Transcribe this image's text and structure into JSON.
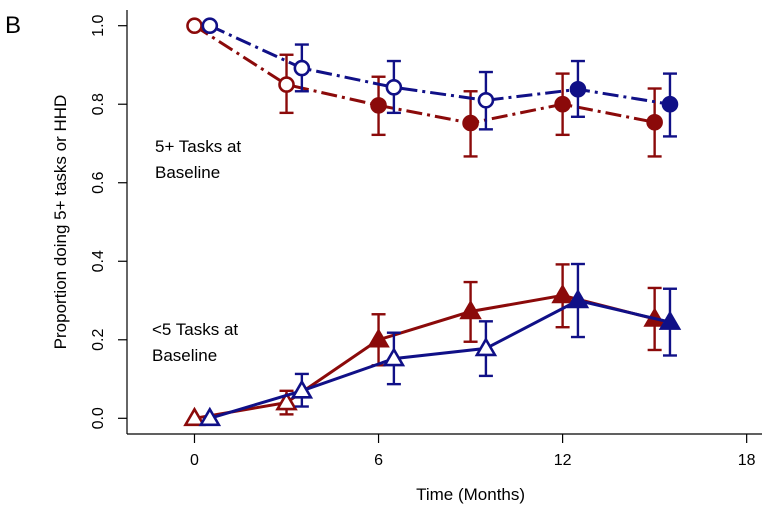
{
  "panel_label": "B",
  "chart_data": {
    "type": "line",
    "xlabel": "Time (Months)",
    "ylabel": "Proportion doing 5+ tasks or HHD",
    "xlim": [
      -2.2,
      18.5
    ],
    "ylim": [
      -0.04,
      1.04
    ],
    "xticks": [
      0,
      6,
      12,
      18
    ],
    "yticks": [
      0.0,
      0.2,
      0.4,
      0.6,
      0.8,
      1.0
    ],
    "ytick_labels": [
      "0.0",
      "0.2",
      "0.4",
      "0.6",
      "0.8",
      "1.0"
    ],
    "grid": false,
    "annotations": [
      {
        "lines": [
          "5+ Tasks at",
          "Baseline"
        ]
      },
      {
        "lines": [
          "<5 Tasks at",
          "Baseline"
        ]
      }
    ],
    "series": [
      {
        "group": "5+ Tasks at Baseline",
        "color": "#8B0A0A",
        "line_style": "dashdot",
        "marker": "circle",
        "x": [
          0,
          3,
          6,
          9,
          12,
          15
        ],
        "y": [
          1.0,
          0.85,
          0.797,
          0.752,
          0.8,
          0.754
        ],
        "err_low": [
          1.0,
          0.778,
          0.722,
          0.667,
          0.722,
          0.667
        ],
        "err_high": [
          1.0,
          0.926,
          0.87,
          0.833,
          0.878,
          0.84
        ],
        "filled": [
          false,
          false,
          true,
          true,
          true,
          true
        ]
      },
      {
        "group": "5+ Tasks at Baseline",
        "color": "#101087",
        "line_style": "dashdot",
        "marker": "circle",
        "x": [
          0.5,
          3.5,
          6.5,
          9.5,
          12.5,
          15.5
        ],
        "y": [
          1.0,
          0.892,
          0.843,
          0.81,
          0.838,
          0.8
        ],
        "err_low": [
          1.0,
          0.833,
          0.778,
          0.736,
          0.768,
          0.718
        ],
        "err_high": [
          1.0,
          0.952,
          0.91,
          0.882,
          0.91,
          0.878
        ],
        "filled": [
          false,
          false,
          false,
          false,
          true,
          true
        ]
      },
      {
        "group": "<5 Tasks at Baseline",
        "color": "#8B0A0A",
        "line_style": "solid",
        "marker": "triangle",
        "x": [
          0,
          3,
          6,
          9,
          12,
          15
        ],
        "y": [
          0.0,
          0.04,
          0.2,
          0.272,
          0.313,
          0.253
        ],
        "err_low": [
          0.0,
          0.01,
          0.135,
          0.195,
          0.232,
          0.174
        ],
        "err_high": [
          0.0,
          0.07,
          0.265,
          0.347,
          0.392,
          0.332
        ],
        "filled": [
          false,
          false,
          true,
          true,
          true,
          true
        ]
      },
      {
        "group": "<5 Tasks at Baseline",
        "color": "#101087",
        "line_style": "solid",
        "marker": "triangle",
        "x": [
          0.5,
          3.5,
          6.5,
          9.5,
          12.5,
          15.5
        ],
        "y": [
          0.0,
          0.07,
          0.152,
          0.178,
          0.3,
          0.245
        ],
        "err_low": [
          0.0,
          0.03,
          0.087,
          0.108,
          0.207,
          0.16
        ],
        "err_high": [
          0.0,
          0.113,
          0.218,
          0.247,
          0.393,
          0.33
        ],
        "filled": [
          false,
          false,
          false,
          false,
          true,
          true
        ]
      }
    ]
  }
}
